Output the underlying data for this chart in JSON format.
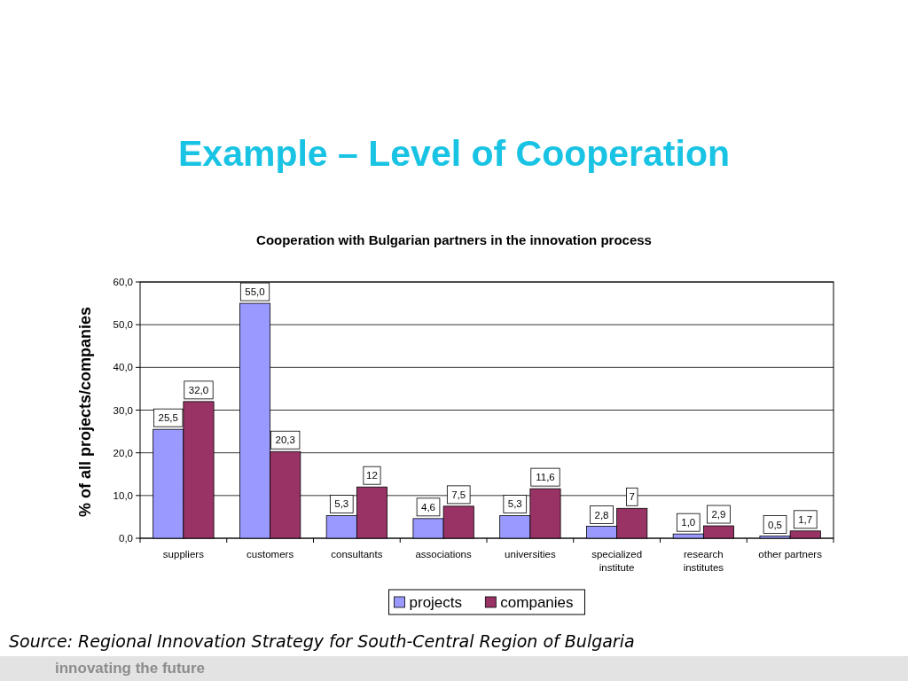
{
  "chart_data": {
    "type": "bar",
    "title": "Example – Level of Cooperation",
    "subtitle": "Cooperation with Bulgarian partners in the innovation process",
    "ylabel": "% of all projects/companies",
    "categories": [
      "suppliers",
      "customers",
      "consultants",
      "associations",
      "universities",
      "specialized institute",
      "research institutes",
      "other partners"
    ],
    "series": [
      {
        "name": "projects",
        "color": "#9999ff",
        "values": [
          25.5,
          55.0,
          5.3,
          4.6,
          5.3,
          2.8,
          1.0,
          0.5
        ],
        "value_labels": [
          "25,5",
          "55,0",
          "5,3",
          "4,6",
          "5,3",
          "2,8",
          "1,0",
          "0,5"
        ]
      },
      {
        "name": "companies",
        "color": "#993366",
        "values": [
          32.0,
          20.3,
          12,
          7.5,
          11.6,
          7,
          2.9,
          1.7
        ],
        "value_labels": [
          "32,0",
          "20,3",
          "12",
          "7,5",
          "11,6",
          "7",
          "2,9",
          "1,7"
        ]
      }
    ],
    "ylim": [
      0,
      60
    ],
    "yticks": [
      {
        "value": 0,
        "label": "0,0"
      },
      {
        "value": 10,
        "label": "10,0"
      },
      {
        "value": 20,
        "label": "20,0"
      },
      {
        "value": 30,
        "label": "30,0"
      },
      {
        "value": 40,
        "label": "40,0"
      },
      {
        "value": 50,
        "label": "50,0"
      },
      {
        "value": 60,
        "label": "60,0"
      }
    ],
    "grid": "y",
    "legend": "bottom",
    "annotations": [
      "Source: Regional Innovation Strategy for South-Central Region of Bulgaria",
      "innovating the future"
    ]
  }
}
